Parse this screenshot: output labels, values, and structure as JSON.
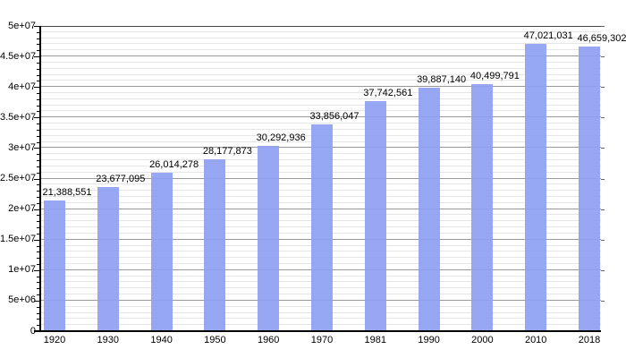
{
  "chart_data": {
    "type": "bar",
    "title": "",
    "xlabel": "",
    "ylabel": "",
    "categories": [
      "1920",
      "1930",
      "1940",
      "1950",
      "1960",
      "1970",
      "1981",
      "1990",
      "2000",
      "2010",
      "2018"
    ],
    "values": [
      21388551,
      23677095,
      26014278,
      28177873,
      30292936,
      33856047,
      37742561,
      39887140,
      40499791,
      47021031,
      46659302
    ],
    "data_labels": [
      "21,388,551",
      "23,677,095",
      "26,014,278",
      "28,177,873",
      "30,292,936",
      "33,856,047",
      "37,742,561",
      "39,887,140",
      "40,499,791",
      "47,021,031",
      "46,659,302"
    ],
    "y_tick_labels": [
      "0",
      "5e+06",
      "1e+07",
      "1.5e+07",
      "2e+07",
      "2.5e+07",
      "3e+07",
      "3.5e+07",
      "4e+07",
      "4.5e+07",
      "5e+07"
    ],
    "ylim": [
      0,
      50000000
    ],
    "y_major_step": 5000000,
    "y_minor_step": 1000000,
    "grid": "on",
    "legend_position": "none",
    "colors": {
      "bar_fill": "rgba(143,160,243,0.92)",
      "grid_major": "#999999",
      "grid_minor": "#e6e6e6",
      "axis": "#000000",
      "frame_top": "#444444",
      "text": "#000000",
      "background": "#ffffff"
    }
  }
}
